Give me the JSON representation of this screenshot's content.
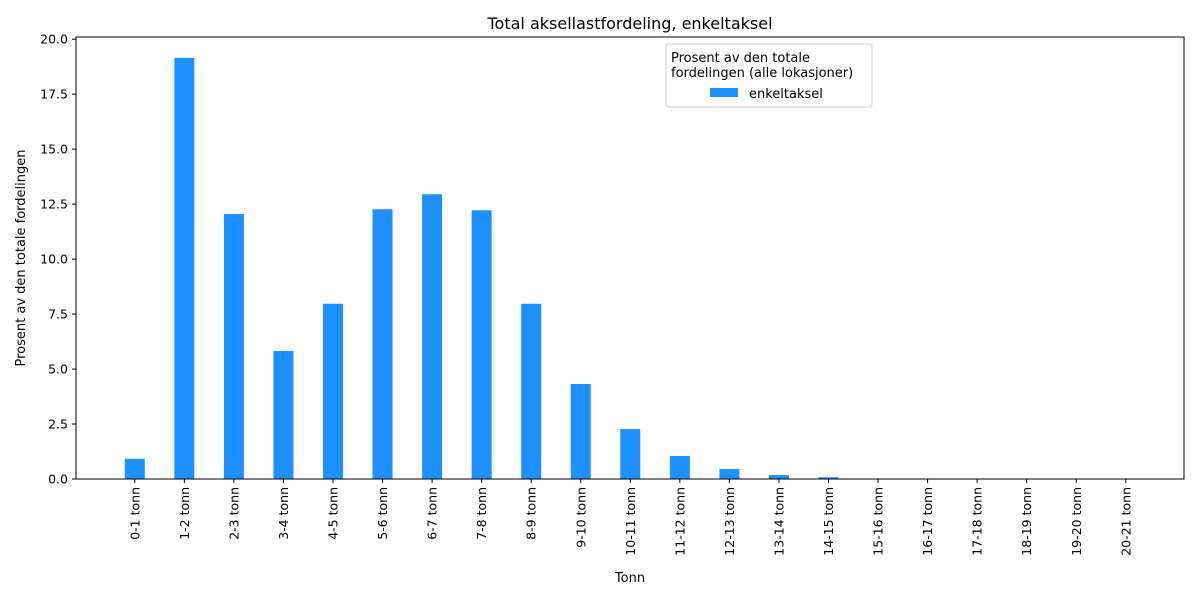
{
  "chart_data": {
    "type": "bar",
    "title": "Total aksellastfordeling, enkeltaksel",
    "xlabel": "Tonn",
    "ylabel": "Prosent av den totale fordelingen",
    "categories": [
      "0-1 tonn",
      "1-2 tonn",
      "2-3 tonn",
      "3-4 tonn",
      "4-5 tonn",
      "5-6 tonn",
      "6-7 tonn",
      "7-8 tonn",
      "8-9 tonn",
      "9-10 tonn",
      "10-11 tonn",
      "11-12 tonn",
      "12-13 tonn",
      "13-14 tonn",
      "14-15 tonn",
      "15-16 tonn",
      "16-17 tonn",
      "17-18 tonn",
      "18-19 tonn",
      "19-20 tonn",
      "20-21 tonn"
    ],
    "series": [
      {
        "name": "enkeltaksel",
        "color": "#1e90ff",
        "values": [
          0.92,
          19.15,
          12.05,
          5.82,
          7.97,
          12.27,
          12.95,
          12.22,
          7.97,
          4.32,
          2.27,
          1.05,
          0.45,
          0.18,
          0.08,
          0.02,
          0.01,
          0.0,
          0.0,
          0.0,
          0.0
        ]
      }
    ],
    "ylim": [
      0,
      20.1
    ],
    "yticks": [
      "0.0",
      "2.5",
      "5.0",
      "7.5",
      "10.0",
      "12.5",
      "15.0",
      "17.5",
      "20.0"
    ],
    "grid": false,
    "legend": {
      "title_line1": "Prosent av den totale",
      "title_line2": "fordelingen (alle lokasjoner)",
      "placement": "top-right"
    }
  }
}
